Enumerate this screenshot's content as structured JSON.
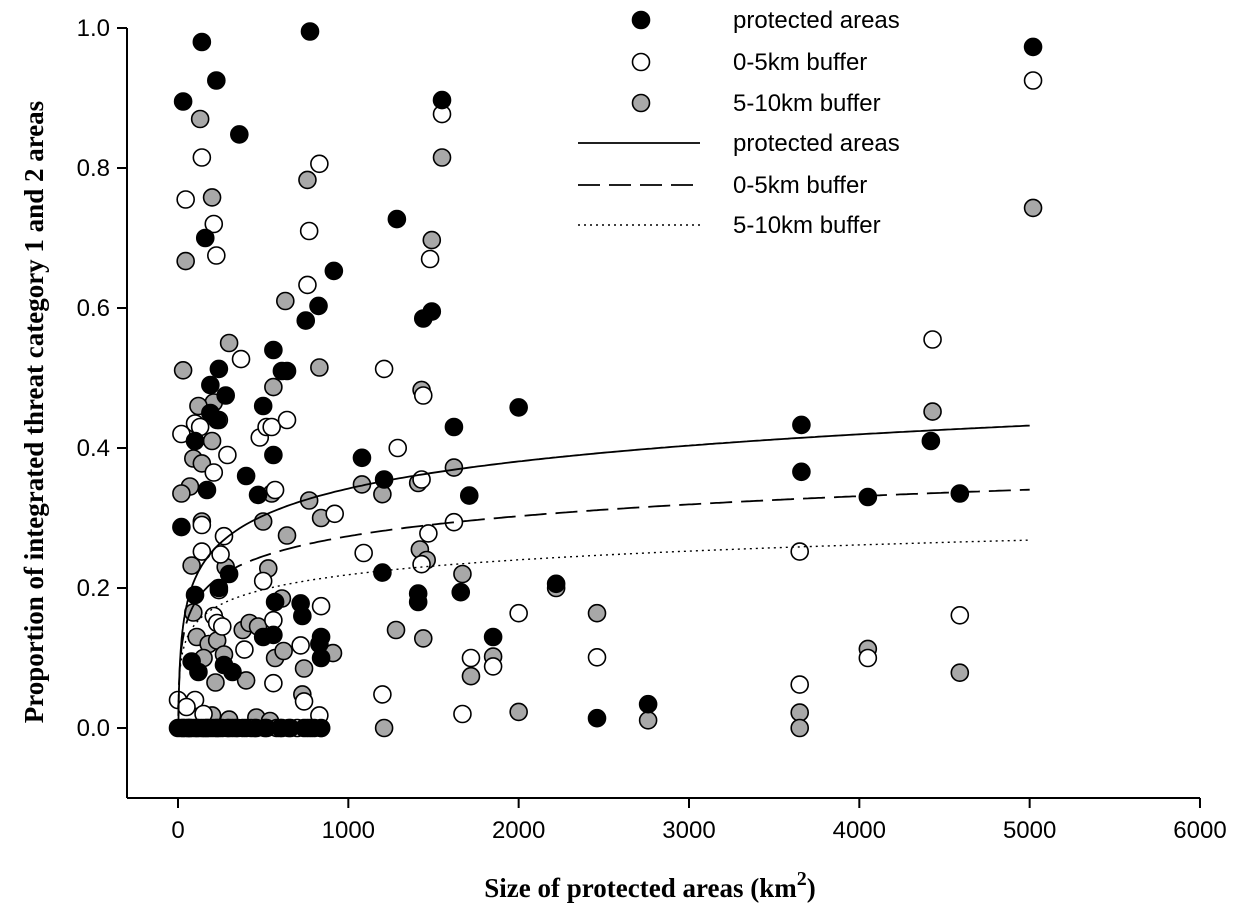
{
  "chart_data": {
    "type": "scatter",
    "title": "",
    "xlabel": "Size of protected areas (km",
    "xlabel_sup": "2",
    "xlabel_close": ")",
    "ylabel": "Proportion of integrated threat category 1 and 2 areas",
    "xlim": [
      -300,
      6000
    ],
    "ylim": [
      -0.1,
      1.0
    ],
    "x_ticks": [
      0,
      1000,
      2000,
      3000,
      4000,
      5000,
      6000
    ],
    "y_ticks": [
      0.0,
      0.2,
      0.4,
      0.6,
      0.8,
      1.0
    ],
    "x_tick_labels": [
      "0",
      "1000",
      "2000",
      "3000",
      "4000",
      "5000",
      "6000"
    ],
    "y_tick_labels": [
      "0.0",
      "0.2",
      "0.4",
      "0.6",
      "0.8",
      "1.0"
    ],
    "grid": false,
    "legend_position": "top-right",
    "series": [
      {
        "name": "protected areas",
        "marker": "filled-black",
        "points": [
          [
            30,
            0.895
          ],
          [
            140,
            0.98
          ],
          [
            225,
            0.925
          ],
          [
            360,
            0.848
          ],
          [
            775,
            0.995
          ],
          [
            1550,
            0.897
          ],
          [
            5020,
            0.973
          ],
          [
            160,
            0.7
          ],
          [
            915,
            0.653
          ],
          [
            1285,
            0.727
          ],
          [
            1490,
            0.595
          ],
          [
            1440,
            0.585
          ],
          [
            750,
            0.582
          ],
          [
            825,
            0.603
          ],
          [
            240,
            0.513
          ],
          [
            560,
            0.54
          ],
          [
            610,
            0.51
          ],
          [
            640,
            0.51
          ],
          [
            190,
            0.49
          ],
          [
            280,
            0.475
          ],
          [
            500,
            0.46
          ],
          [
            190,
            0.45
          ],
          [
            230,
            0.44
          ],
          [
            1620,
            0.43
          ],
          [
            2000,
            0.458
          ],
          [
            3660,
            0.433
          ],
          [
            4420,
            0.41
          ],
          [
            1080,
            0.386
          ],
          [
            560,
            0.39
          ],
          [
            1210,
            0.355
          ],
          [
            3660,
            0.366
          ],
          [
            400,
            0.36
          ],
          [
            470,
            0.333
          ],
          [
            1710,
            0.332
          ],
          [
            4050,
            0.33
          ],
          [
            4590,
            0.335
          ],
          [
            100,
            0.41
          ],
          [
            170,
            0.34
          ],
          [
            20,
            0.287
          ],
          [
            1200,
            0.222
          ],
          [
            1410,
            0.192
          ],
          [
            1660,
            0.194
          ],
          [
            1410,
            0.18
          ],
          [
            1850,
            0.13
          ],
          [
            2220,
            0.206
          ],
          [
            2760,
            0.034
          ],
          [
            2460,
            0.014
          ],
          [
            100,
            0.19
          ],
          [
            240,
            0.2
          ],
          [
            300,
            0.22
          ],
          [
            570,
            0.18
          ],
          [
            720,
            0.178
          ],
          [
            730,
            0.16
          ],
          [
            840,
            0.13
          ],
          [
            830,
            0.12
          ],
          [
            500,
            0.13
          ],
          [
            560,
            0.133
          ],
          [
            270,
            0.09
          ],
          [
            120,
            0.08
          ],
          [
            320,
            0.08
          ],
          [
            80,
            0.095
          ],
          [
            840,
            0.1
          ],
          [
            0,
            0
          ],
          [
            20,
            0
          ],
          [
            40,
            0
          ],
          [
            60,
            0
          ],
          [
            80,
            0
          ],
          [
            100,
            0
          ],
          [
            120,
            0
          ],
          [
            140,
            0
          ],
          [
            160,
            0
          ],
          [
            180,
            0
          ],
          [
            200,
            0
          ],
          [
            220,
            0
          ],
          [
            260,
            0
          ],
          [
            300,
            0
          ],
          [
            340,
            0
          ],
          [
            400,
            0
          ],
          [
            460,
            0
          ],
          [
            520,
            0
          ],
          [
            600,
            0
          ],
          [
            660,
            0
          ],
          [
            740,
            0
          ],
          [
            800,
            0
          ],
          [
            840,
            0
          ]
        ]
      },
      {
        "name": "0-5km buffer",
        "marker": "open-white",
        "points": [
          [
            140,
            0.815
          ],
          [
            45,
            0.755
          ],
          [
            210,
            0.72
          ],
          [
            225,
            0.675
          ],
          [
            1550,
            0.877
          ],
          [
            5020,
            0.925
          ],
          [
            830,
            0.806
          ],
          [
            770,
            0.71
          ],
          [
            760,
            0.633
          ],
          [
            1480,
            0.67
          ],
          [
            4430,
            0.555
          ],
          [
            370,
            0.527
          ],
          [
            1210,
            0.513
          ],
          [
            1440,
            0.475
          ],
          [
            20,
            0.42
          ],
          [
            100,
            0.435
          ],
          [
            130,
            0.43
          ],
          [
            480,
            0.415
          ],
          [
            520,
            0.43
          ],
          [
            550,
            0.43
          ],
          [
            640,
            0.44
          ],
          [
            1290,
            0.4
          ],
          [
            1430,
            0.355
          ],
          [
            1470,
            0.278
          ],
          [
            1620,
            0.294
          ],
          [
            920,
            0.306
          ],
          [
            290,
            0.39
          ],
          [
            210,
            0.365
          ],
          [
            1090,
            0.25
          ],
          [
            3650,
            0.252
          ],
          [
            250,
            0.248
          ],
          [
            270,
            0.274
          ],
          [
            140,
            0.252
          ],
          [
            500,
            0.21
          ],
          [
            570,
            0.34
          ],
          [
            140,
            0.29
          ],
          [
            1430,
            0.234
          ],
          [
            240,
            0.197
          ],
          [
            210,
            0.16
          ],
          [
            230,
            0.15
          ],
          [
            260,
            0.145
          ],
          [
            390,
            0.112
          ],
          [
            840,
            0.174
          ],
          [
            560,
            0.154
          ],
          [
            720,
            0.118
          ],
          [
            2000,
            0.164
          ],
          [
            4590,
            0.161
          ],
          [
            1720,
            0.1
          ],
          [
            2460,
            0.101
          ],
          [
            4050,
            0.1
          ],
          [
            3650,
            0.062
          ],
          [
            1850,
            0.088
          ],
          [
            560,
            0.064
          ],
          [
            1200,
            0.048
          ],
          [
            740,
            0.038
          ],
          [
            1670,
            0.02
          ],
          [
            830,
            0.018
          ],
          [
            100,
            0.04
          ],
          [
            0,
            0.04
          ],
          [
            50,
            0.03
          ],
          [
            150,
            0.02
          ],
          [
            30,
            0
          ],
          [
            70,
            0
          ],
          [
            110,
            0
          ],
          [
            170,
            0
          ],
          [
            230,
            0
          ],
          [
            290,
            0
          ],
          [
            350,
            0
          ],
          [
            430,
            0
          ],
          [
            510,
            0
          ],
          [
            610,
            0
          ],
          [
            700,
            0
          ],
          [
            780,
            0
          ]
        ]
      },
      {
        "name": "5-10km buffer",
        "marker": "filled-gray",
        "points": [
          [
            130,
            0.87
          ],
          [
            200,
            0.758
          ],
          [
            45,
            0.667
          ],
          [
            1550,
            0.815
          ],
          [
            5020,
            0.743
          ],
          [
            760,
            0.783
          ],
          [
            1490,
            0.697
          ],
          [
            630,
            0.61
          ],
          [
            300,
            0.55
          ],
          [
            830,
            0.515
          ],
          [
            30,
            0.511
          ],
          [
            1430,
            0.483
          ],
          [
            4430,
            0.452
          ],
          [
            560,
            0.487
          ],
          [
            210,
            0.465
          ],
          [
            120,
            0.46
          ],
          [
            200,
            0.41
          ],
          [
            240,
            0.44
          ],
          [
            1620,
            0.372
          ],
          [
            70,
            0.345
          ],
          [
            20,
            0.335
          ],
          [
            770,
            0.325
          ],
          [
            1080,
            0.348
          ],
          [
            1410,
            0.35
          ],
          [
            1200,
            0.334
          ],
          [
            550,
            0.335
          ],
          [
            500,
            0.295
          ],
          [
            840,
            0.3
          ],
          [
            640,
            0.275
          ],
          [
            90,
            0.385
          ],
          [
            140,
            0.378
          ],
          [
            140,
            0.295
          ],
          [
            80,
            0.232
          ],
          [
            1420,
            0.255
          ],
          [
            1460,
            0.24
          ],
          [
            2220,
            0.2
          ],
          [
            1670,
            0.22
          ],
          [
            280,
            0.23
          ],
          [
            2460,
            0.164
          ],
          [
            4050,
            0.113
          ],
          [
            90,
            0.165
          ],
          [
            110,
            0.13
          ],
          [
            180,
            0.12
          ],
          [
            150,
            0.1
          ],
          [
            230,
            0.125
          ],
          [
            270,
            0.105
          ],
          [
            380,
            0.14
          ],
          [
            420,
            0.15
          ],
          [
            470,
            0.145
          ],
          [
            530,
            0.228
          ],
          [
            610,
            0.185
          ],
          [
            570,
            0.1
          ],
          [
            620,
            0.11
          ],
          [
            740,
            0.085
          ],
          [
            910,
            0.107
          ],
          [
            1280,
            0.14
          ],
          [
            1440,
            0.128
          ],
          [
            1850,
            0.102
          ],
          [
            1720,
            0.074
          ],
          [
            4590,
            0.079
          ],
          [
            220,
            0.065
          ],
          [
            400,
            0.068
          ],
          [
            730,
            0.048
          ],
          [
            3650,
            0.022
          ],
          [
            2000,
            0.023
          ],
          [
            2760,
            0.011
          ],
          [
            200,
            0.018
          ],
          [
            300,
            0.012
          ],
          [
            460,
            0.015
          ],
          [
            540,
            0.01
          ],
          [
            3650,
            0
          ],
          [
            1210,
            0
          ],
          [
            60,
            0
          ],
          [
            150,
            0
          ],
          [
            240,
            0
          ],
          [
            320,
            0
          ],
          [
            380,
            0
          ],
          [
            450,
            0
          ],
          [
            580,
            0
          ],
          [
            650,
            0
          ],
          [
            760,
            0
          ],
          [
            840,
            0
          ]
        ]
      }
    ],
    "fit_lines": [
      {
        "name": "protected areas",
        "style": "solid",
        "a": -0.0441,
        "b": 0.0559
      },
      {
        "name": "0-5km buffer",
        "style": "dashed",
        "a": -0.0113,
        "b": 0.0413
      },
      {
        "name": "5-10km buffer",
        "style": "dotted",
        "a": 0.0069,
        "b": 0.0307
      }
    ]
  }
}
